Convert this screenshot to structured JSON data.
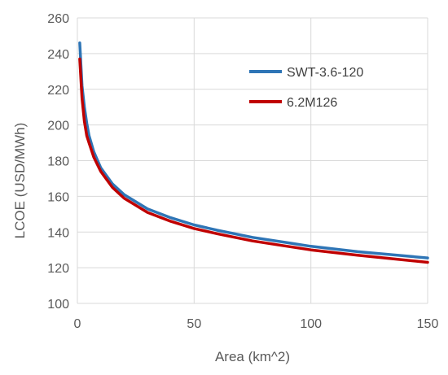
{
  "chart_data": {
    "type": "line",
    "title": "",
    "xlabel": "Area (km^2)",
    "ylabel": "LCOE (USD/MWh)",
    "xlim": [
      0,
      150
    ],
    "ylim": [
      100,
      260
    ],
    "x_ticks": [
      0,
      50,
      100,
      150
    ],
    "x_tick_labels": [
      "0",
      "50",
      "100",
      "150"
    ],
    "y_ticks": [
      100,
      120,
      140,
      160,
      180,
      200,
      220,
      240,
      260
    ],
    "y_tick_labels": [
      "100",
      "120",
      "140",
      "160",
      "180",
      "200",
      "220",
      "240",
      "260"
    ],
    "grid": true,
    "legend_position": "top-right",
    "series": [
      {
        "name": "SWT-3.6-120",
        "color": "#2E75B6",
        "points": [
          [
            1,
            246
          ],
          [
            2,
            222
          ],
          [
            3,
            210
          ],
          [
            4,
            201
          ],
          [
            5,
            194
          ],
          [
            7,
            185
          ],
          [
            10,
            176
          ],
          [
            15,
            167
          ],
          [
            20,
            161
          ],
          [
            30,
            153
          ],
          [
            40,
            148
          ],
          [
            50,
            144
          ],
          [
            60,
            141
          ],
          [
            75,
            137
          ],
          [
            90,
            134
          ],
          [
            100,
            132
          ],
          [
            120,
            129
          ],
          [
            150,
            125.5
          ]
        ]
      },
      {
        "name": "6.2M126",
        "color": "#C00000",
        "points": [
          [
            1,
            237
          ],
          [
            2,
            215
          ],
          [
            3,
            202
          ],
          [
            4,
            194
          ],
          [
            5,
            190
          ],
          [
            7,
            182
          ],
          [
            10,
            174
          ],
          [
            15,
            165
          ],
          [
            20,
            159
          ],
          [
            30,
            151
          ],
          [
            40,
            146
          ],
          [
            50,
            142
          ],
          [
            60,
            139
          ],
          [
            75,
            135
          ],
          [
            90,
            132
          ],
          [
            100,
            130
          ],
          [
            120,
            127
          ],
          [
            150,
            123
          ]
        ]
      }
    ]
  }
}
